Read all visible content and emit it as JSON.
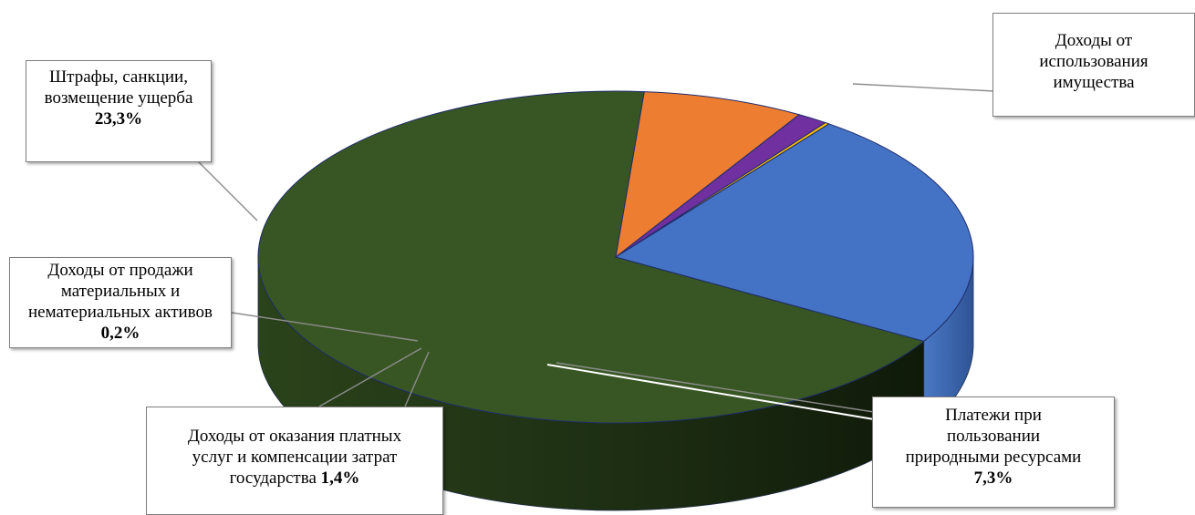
{
  "chart_data": {
    "type": "pie",
    "title": "",
    "slices": [
      {
        "label": "Доходы от использования имущества",
        "value": 67.8,
        "color": "#375623",
        "value_label": ""
      },
      {
        "label": "Платежи при пользовании природными ресурсами",
        "value": 7.3,
        "color": "#ED7D31",
        "value_label": "7,3%"
      },
      {
        "label": "Доходы от оказания платных услуг и компенсации затрат государства",
        "value": 1.4,
        "color": "#7030A0",
        "value_label": "1,4%"
      },
      {
        "label": "Доходы от продажи материальных и нематериальных активов",
        "value": 0.2,
        "color": "#FFC000",
        "value_label": "0,2%"
      },
      {
        "label": "Штрафы, санкции, возмещение ущерба",
        "value": 23.3,
        "color": "#4472C4",
        "value_label": "23,3%"
      }
    ],
    "three_d": true,
    "legend": "none"
  },
  "callouts": {
    "property": {
      "line1": "Доходы от",
      "line2": "использования",
      "line3": "имущества"
    },
    "natural": {
      "line1": "Платежи при",
      "line2": "пользовании",
      "line3": "природными ресурсами",
      "pct": "7,3%"
    },
    "services": {
      "line1": "Доходы от оказания платных",
      "line2": "услуг и компенсации затрат",
      "line3": "государства",
      "pct": "1,4%"
    },
    "assets": {
      "line1": "Доходы от продажи",
      "line2": "материальных и",
      "line3": "нематериальных активов",
      "pct": "0,2%"
    },
    "fines": {
      "line1": "Штрафы, санкции,",
      "line2": "возмещение ущерба",
      "pct": "23,3%"
    }
  }
}
